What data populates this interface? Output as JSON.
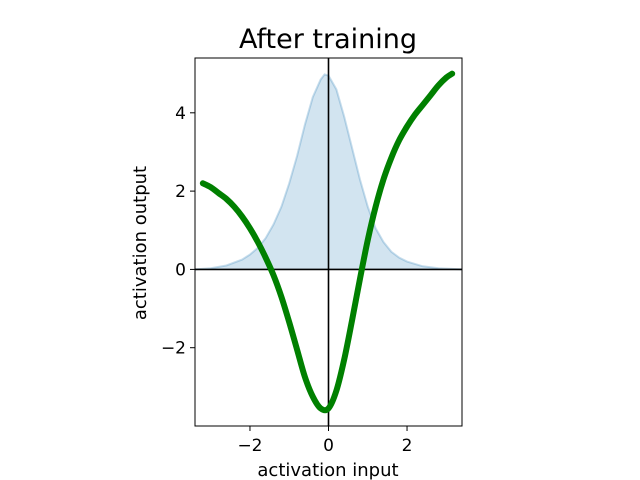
{
  "chart_data": {
    "type": "line",
    "title": "After training",
    "xlabel": "activation input",
    "ylabel": "activation output",
    "xlim": [
      -3.4,
      3.4
    ],
    "ylim": [
      -4.0,
      5.4
    ],
    "x_ticks": [
      -2,
      0,
      2
    ],
    "y_ticks": [
      -2,
      0,
      2,
      4
    ],
    "x_tick_labels": [
      "−2",
      "0",
      "2"
    ],
    "y_tick_labels": [
      "−2",
      "0",
      "2",
      "4"
    ],
    "grid": false,
    "series": [
      {
        "type": "line",
        "color": "#008000",
        "x": [
          -3.2,
          -3.0,
          -2.8,
          -2.6,
          -2.4,
          -2.2,
          -2.0,
          -1.8,
          -1.6,
          -1.4,
          -1.2,
          -1.0,
          -0.8,
          -0.6,
          -0.4,
          -0.2,
          0.0,
          0.2,
          0.4,
          0.6,
          0.8,
          1.0,
          1.2,
          1.4,
          1.6,
          1.8,
          2.0,
          2.2,
          2.4,
          2.6,
          2.8,
          3.0,
          3.15
        ],
        "y": [
          2.2,
          2.1,
          1.95,
          1.8,
          1.6,
          1.35,
          1.05,
          0.7,
          0.3,
          -0.15,
          -0.7,
          -1.35,
          -2.05,
          -2.75,
          -3.25,
          -3.55,
          -3.55,
          -3.1,
          -2.3,
          -1.3,
          -0.25,
          0.75,
          1.6,
          2.3,
          2.85,
          3.3,
          3.65,
          3.95,
          4.2,
          4.45,
          4.7,
          4.9,
          5.0
        ]
      },
      {
        "type": "area",
        "color": "#1f77b4",
        "x": [
          -3.4,
          -3.0,
          -2.6,
          -2.2,
          -2.0,
          -1.8,
          -1.6,
          -1.4,
          -1.2,
          -1.0,
          -0.8,
          -0.6,
          -0.4,
          -0.2,
          -0.1,
          0.0,
          0.2,
          0.4,
          0.6,
          0.8,
          1.0,
          1.2,
          1.4,
          1.6,
          1.8,
          2.0,
          2.4,
          2.8,
          3.4
        ],
        "y": [
          0.0,
          0.03,
          0.1,
          0.25,
          0.38,
          0.55,
          0.8,
          1.15,
          1.6,
          2.2,
          2.9,
          3.7,
          4.4,
          4.85,
          4.98,
          4.95,
          4.6,
          3.9,
          3.1,
          2.3,
          1.6,
          1.05,
          0.7,
          0.45,
          0.3,
          0.2,
          0.08,
          0.03,
          0.0
        ]
      }
    ],
    "reference_lines": [
      {
        "orientation": "horizontal",
        "value": 0,
        "color": "#000000"
      },
      {
        "orientation": "vertical",
        "value": 0,
        "color": "#000000"
      }
    ]
  }
}
